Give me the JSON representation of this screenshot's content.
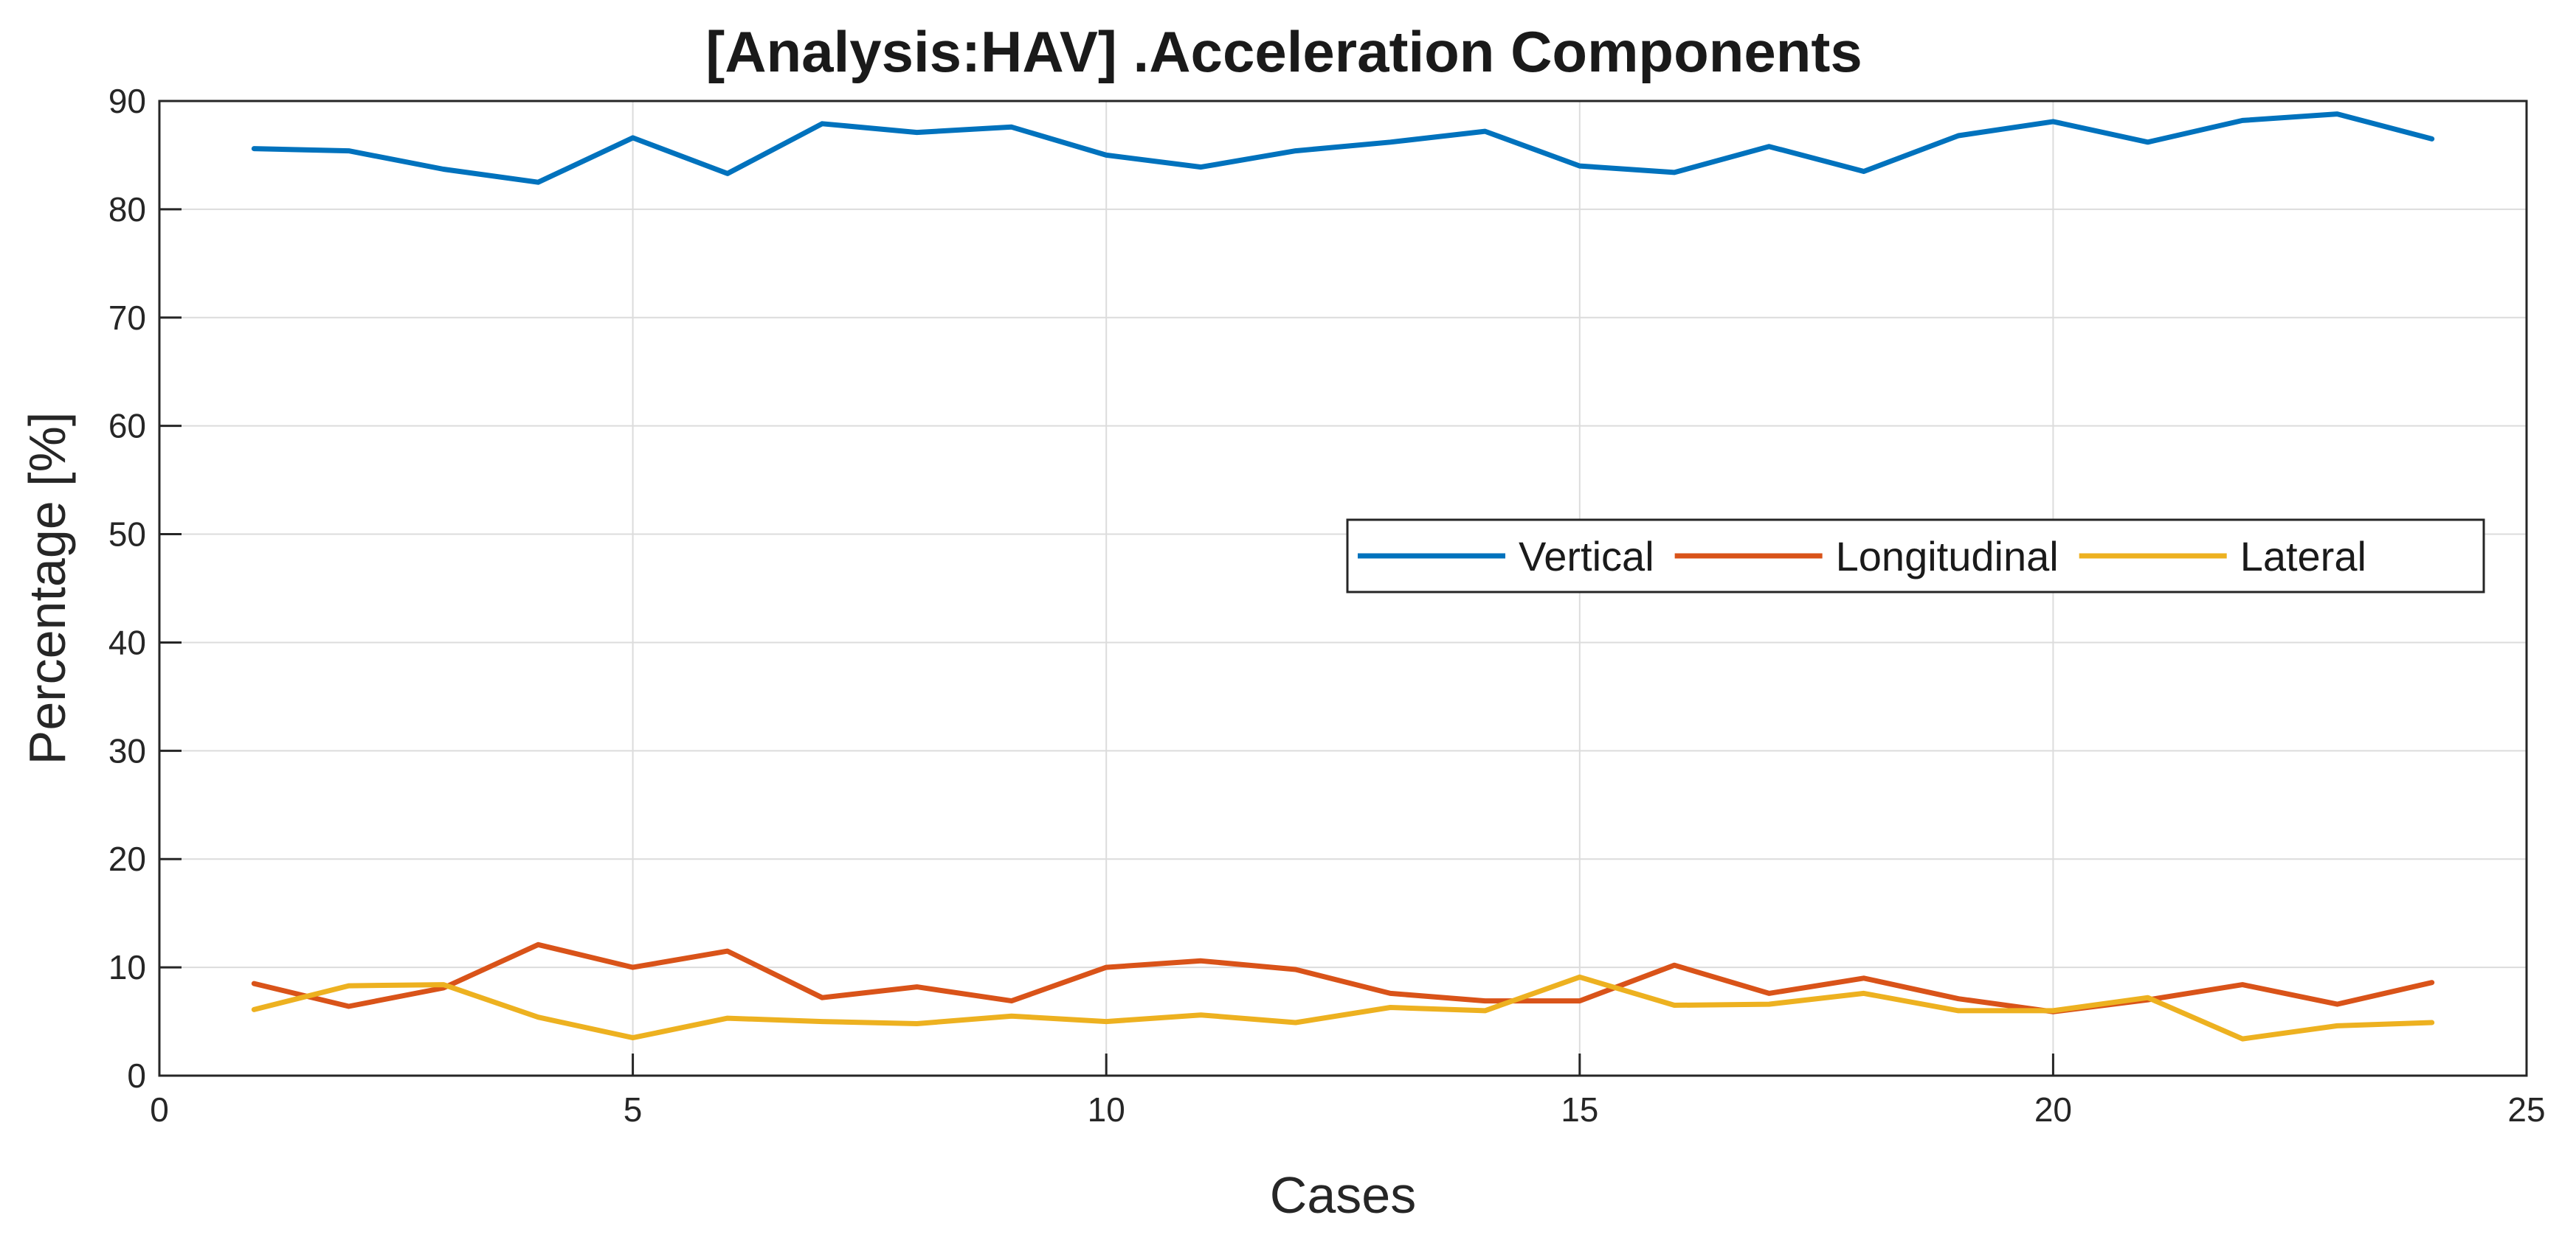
{
  "chart_data": {
    "type": "line",
    "title": "[Analysis:HAV] .Acceleration Components",
    "xlabel": "Cases",
    "ylabel": "Percentage [%]",
    "xlim": [
      0,
      25
    ],
    "ylim": [
      0,
      90
    ],
    "xticks": [
      0,
      5,
      10,
      15,
      20,
      25
    ],
    "yticks": [
      0,
      10,
      20,
      30,
      40,
      50,
      60,
      70,
      80,
      90
    ],
    "grid": true,
    "legend": {
      "placement": "center-right",
      "orientation": "horizontal"
    },
    "x": [
      1,
      2,
      3,
      4,
      5,
      6,
      7,
      8,
      9,
      10,
      11,
      12,
      13,
      14,
      15,
      16,
      17,
      18,
      19,
      20,
      21,
      22,
      23,
      24
    ],
    "series": [
      {
        "name": "Vertical",
        "color": "#0072BD",
        "values": [
          85.6,
          85.4,
          83.7,
          82.5,
          86.6,
          83.3,
          87.9,
          87.1,
          87.6,
          85.0,
          83.9,
          85.4,
          86.2,
          87.2,
          84.0,
          83.4,
          85.8,
          83.5,
          86.8,
          88.1,
          86.2,
          88.2,
          88.8,
          86.5
        ]
      },
      {
        "name": "Longitudinal",
        "color": "#D95319",
        "values": [
          8.5,
          6.4,
          8.1,
          12.1,
          10.0,
          11.5,
          7.2,
          8.2,
          6.9,
          10.0,
          10.6,
          9.8,
          7.6,
          6.9,
          6.9,
          10.2,
          7.6,
          9.0,
          7.1,
          5.9,
          7.0,
          8.4,
          6.6,
          8.6
        ]
      },
      {
        "name": "Lateral",
        "color": "#EDB120",
        "values": [
          6.1,
          8.3,
          8.4,
          5.4,
          3.5,
          5.3,
          5.0,
          4.8,
          5.5,
          5.0,
          5.6,
          4.9,
          6.3,
          6.0,
          9.1,
          6.5,
          6.6,
          7.6,
          6.0,
          6.0,
          7.2,
          3.4,
          4.6,
          4.9
        ]
      }
    ]
  }
}
